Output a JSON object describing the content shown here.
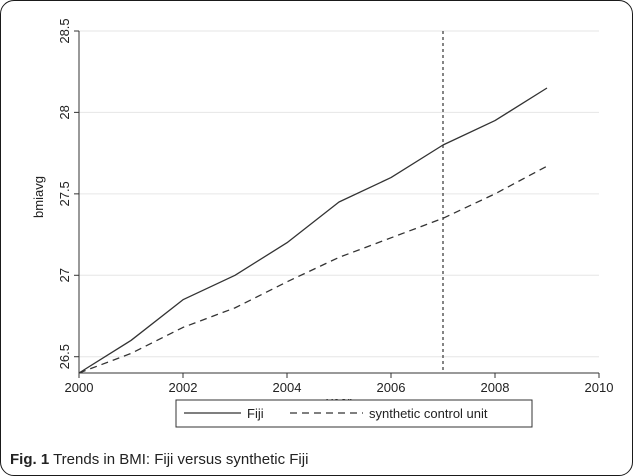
{
  "chart_data": {
    "type": "line",
    "xlabel": "year",
    "ylabel": "bmiavg",
    "xlim": [
      2000,
      2010
    ],
    "ylim": [
      26.4,
      28.5
    ],
    "xticks": [
      {
        "value": 2000,
        "label": "2000"
      },
      {
        "value": 2002,
        "label": "2002"
      },
      {
        "value": 2004,
        "label": "2004"
      },
      {
        "value": 2006,
        "label": "2006"
      },
      {
        "value": 2008,
        "label": "2008"
      },
      {
        "value": 2010,
        "label": "2010"
      }
    ],
    "yticks": [
      {
        "value": 26.5,
        "label": "26.5"
      },
      {
        "value": 27,
        "label": "27"
      },
      {
        "value": 27.5,
        "label": "27.5"
      },
      {
        "value": 28,
        "label": "28"
      },
      {
        "value": 28.5,
        "label": "28.5"
      }
    ],
    "grid": true,
    "legend": "bottom",
    "vline": {
      "x": 2007,
      "style": "dotted"
    },
    "x": [
      2000,
      2001,
      2002,
      2003,
      2004,
      2005,
      2006,
      2007,
      2008,
      2009
    ],
    "series": [
      {
        "name": "Fiji",
        "style": "solid",
        "color": "#333333",
        "values": [
          26.4,
          26.6,
          26.85,
          27.0,
          27.2,
          27.45,
          27.6,
          27.8,
          27.95,
          28.15
        ]
      },
      {
        "name": "synthetic control unit",
        "style": "dashed",
        "color": "#333333",
        "values": [
          26.4,
          26.52,
          26.68,
          26.8,
          26.96,
          27.11,
          27.23,
          27.35,
          27.5,
          27.67
        ]
      }
    ]
  },
  "caption": {
    "label": "Fig. 1",
    "text": " Trends in BMI: Fiji versus synthetic Fiji"
  }
}
